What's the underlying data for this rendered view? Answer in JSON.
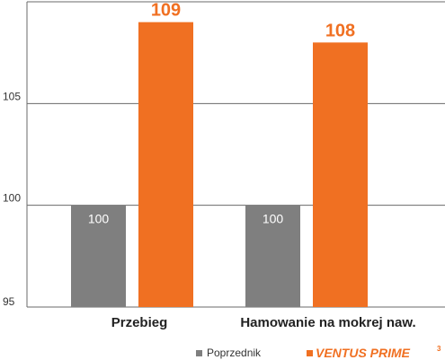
{
  "chart_data": {
    "type": "bar",
    "categories": [
      "Przebieg",
      "Hamowanie na mokrej naw."
    ],
    "series": [
      {
        "name": "Poprzednik",
        "values": [
          100,
          100
        ],
        "color": "#7f7f7f"
      },
      {
        "name": "Ventus Prime 3",
        "values": [
          109,
          108
        ],
        "color": "#f07022"
      }
    ],
    "ylim": [
      95,
      110
    ],
    "yticks": [
      95,
      100,
      105,
      110
    ],
    "grid": true,
    "legend_position": "bottom-right",
    "title": "",
    "xlabel": "",
    "ylabel": ""
  },
  "legend": {
    "brand_main": "VENTUS PRIME",
    "brand_superscript": "3"
  }
}
